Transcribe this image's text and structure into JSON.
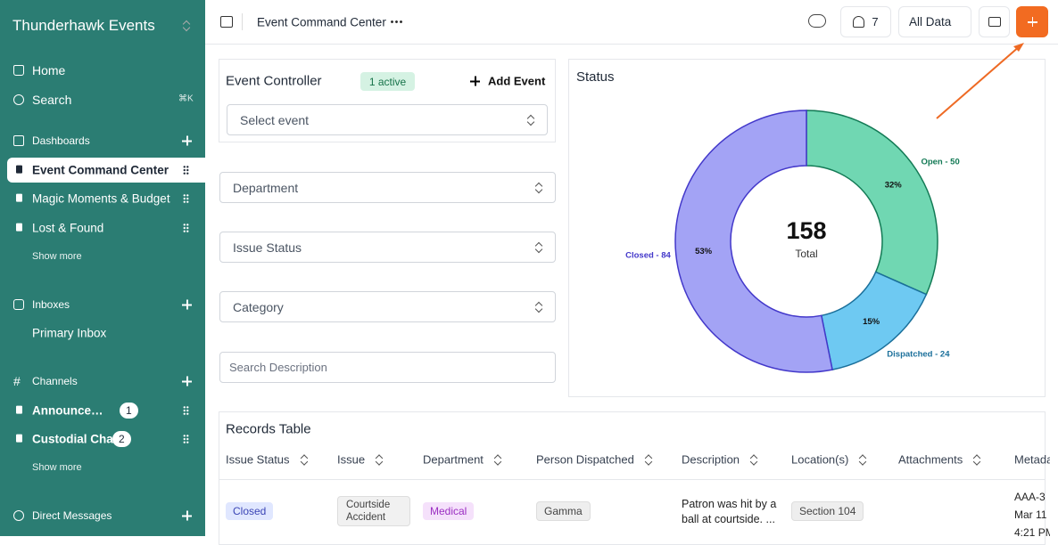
{
  "sidebar": {
    "workspace": "Thunderhawk Events",
    "home": "Home",
    "search": "Search",
    "search_shortcut": "⌘K",
    "dashboards": "Dashboards",
    "dashboard_items": [
      "Event Command Center",
      "Magic Moments & Budget",
      "Lost & Found"
    ],
    "show_more_dashboards": "Show more",
    "inboxes": "Inboxes",
    "inbox_items": [
      "Primary Inbox"
    ],
    "channels": "Channels",
    "channel_items": [
      {
        "name": "Announcements",
        "count": 1
      },
      {
        "name": "Custodial Chat",
        "count": 2
      }
    ],
    "show_more_channels": "Show more",
    "direct_messages": "Direct Messages"
  },
  "topbar": {
    "breadcrumb": "Event Command Center",
    "members": 7,
    "data_scope": "All Data"
  },
  "controller": {
    "title": "Event Controller",
    "badge": "1 active",
    "add_button": "Add Event",
    "select": "Select event"
  },
  "filters": {
    "department": "Department",
    "issue_status": "Issue Status",
    "category": "Category",
    "search": "Search Description"
  },
  "chart_data": {
    "type": "pie",
    "title": "Status",
    "donut": true,
    "labels": [
      "Open - 50",
      "Dispatched - 24",
      "Closed - 84"
    ],
    "values": [
      50,
      24,
      84
    ],
    "percent_labels": [
      "32%",
      "15%",
      "53%"
    ],
    "colors": [
      "#70d7b2",
      "#6ec9f2",
      "#a3a3f5"
    ],
    "stroke_colors": [
      "#137a55",
      "#1a6f9a",
      "#4338ca"
    ],
    "center_value": 158,
    "center_label": "Total"
  },
  "table": {
    "title": "Records Table",
    "columns": [
      "Issue Status",
      "Issue",
      "Department",
      "Person Dispatched",
      "Description",
      "Location(s)",
      "Attachments",
      "Metadata"
    ],
    "rows": [
      [
        "Closed",
        "Courtside Accident",
        "Medical",
        "Gamma",
        "Patron was hit by a ball at courtside. ...",
        "Section 104",
        "",
        [
          "AAA-3",
          "Mar 11",
          "4:21 PM"
        ]
      ]
    ]
  }
}
